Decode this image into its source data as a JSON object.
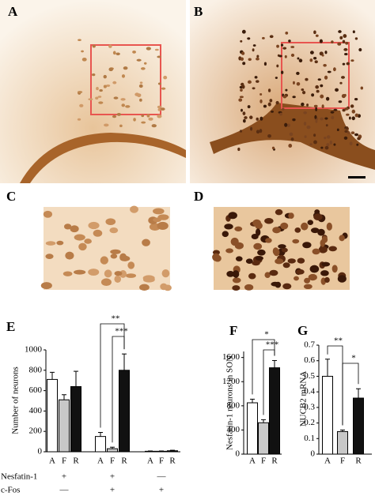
{
  "panels": {
    "labels": [
      "A",
      "B",
      "C",
      "D"
    ]
  },
  "chart_data": [
    {
      "type": "bar",
      "panel_label": "E",
      "y_label": "Number of neurons",
      "ylim": [
        0,
        1000
      ],
      "yticks": [
        0,
        200,
        400,
        600,
        800,
        1000
      ],
      "categories": [
        "A",
        "F",
        "R",
        "A",
        "F",
        "R",
        "A",
        "F",
        "R"
      ],
      "values": [
        710,
        510,
        640,
        150,
        30,
        800,
        5,
        5,
        10
      ],
      "errors": [
        70,
        50,
        150,
        40,
        15,
        160,
        3,
        3,
        5
      ],
      "colors": [
        "#ffffff",
        "#c8c8c8",
        "#111111"
      ],
      "annotations": [
        "**",
        "***"
      ],
      "row_labels": [
        "Nesfatin-1",
        "c-Fos"
      ],
      "row_signs": [
        [
          "+",
          "+",
          "—"
        ],
        [
          "—",
          "+",
          "+"
        ]
      ]
    },
    {
      "type": "bar",
      "panel_label": "F",
      "y_label": "Nesfatin-1 neurons in SON",
      "ylim": [
        0,
        1700
      ],
      "yticks": [
        0,
        400,
        800,
        1200,
        1600
      ],
      "categories": [
        "A",
        "F",
        "R"
      ],
      "values": [
        850,
        520,
        1430
      ],
      "errors": [
        60,
        50,
        120
      ],
      "colors": [
        "#ffffff",
        "#c8c8c8",
        "#111111"
      ],
      "annotations": [
        "*",
        "***"
      ]
    },
    {
      "type": "bar",
      "panel_label": "G",
      "y_label": "NUCB2 mRNA",
      "ylim": [
        0,
        0.7
      ],
      "yticks": [
        0,
        0.1,
        0.2,
        0.3,
        0.4,
        0.5,
        0.6,
        0.7
      ],
      "categories": [
        "A",
        "F",
        "R"
      ],
      "values": [
        0.5,
        0.145,
        0.36
      ],
      "errors": [
        0.11,
        0.01,
        0.06
      ],
      "colors": [
        "#ffffff",
        "#c8c8c8",
        "#111111"
      ],
      "annotations": [
        "**",
        "*"
      ]
    }
  ]
}
